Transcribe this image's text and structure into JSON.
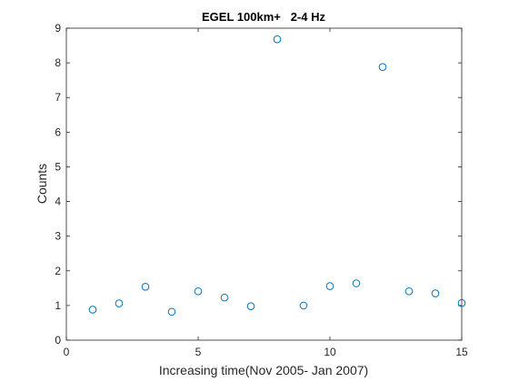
{
  "chart_data": {
    "type": "scatter",
    "title": "EGEL 100km+   2-4 Hz",
    "xlabel": "Increasing time(Nov 2005- Jan 2007)",
    "ylabel": "Counts",
    "xlim": [
      0,
      15
    ],
    "ylim": [
      0,
      9
    ],
    "xticks": [
      0,
      5,
      10,
      15
    ],
    "yticks": [
      0,
      1,
      2,
      3,
      4,
      5,
      6,
      7,
      8,
      9
    ],
    "grid": false,
    "marker": "open-circle",
    "series": [
      {
        "color": "#0072bd",
        "x": [
          1,
          2,
          3,
          4,
          5,
          6,
          7,
          8,
          9,
          10,
          11,
          12,
          13,
          14,
          15
        ],
        "y": [
          0.88,
          1.06,
          1.54,
          0.82,
          1.41,
          1.23,
          0.98,
          8.68,
          1.0,
          1.56,
          1.64,
          7.88,
          1.41,
          1.35,
          1.07
        ]
      }
    ]
  }
}
